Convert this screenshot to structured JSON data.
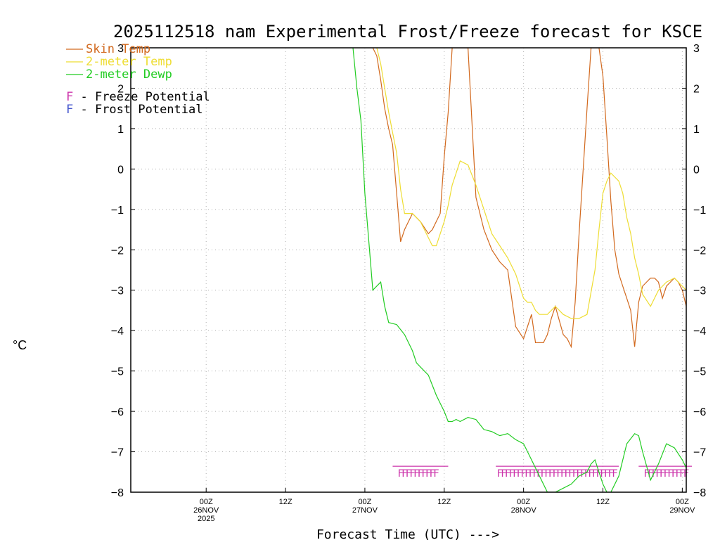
{
  "chart_data": {
    "type": "line",
    "title": "2025112518 nam Experimental Frost/Freeze forecast for KSCE",
    "ylabel": "°C",
    "xlabel": "Forecast Time (UTC) --->",
    "ylim": [
      -8,
      3
    ],
    "xlim": [
      -9.5,
      60.5
    ],
    "x_unit": "hours since 26NOV 00Z",
    "grid": true,
    "yticks": [
      -8,
      -7,
      -6,
      -5,
      -4,
      -3,
      -2,
      -1,
      0,
      1,
      2,
      3
    ],
    "xticks": [
      {
        "x": 0,
        "lines": [
          "00Z",
          "26NOV",
          "2025"
        ]
      },
      {
        "x": 10,
        "lines": [
          "12Z"
        ]
      },
      {
        "x": 20,
        "lines": [
          "00Z",
          "27NOV"
        ]
      },
      {
        "x": 30,
        "lines": [
          "12Z"
        ]
      },
      {
        "x": 40,
        "lines": [
          "00Z",
          "28NOV"
        ]
      },
      {
        "x": 50,
        "lines": [
          "12Z"
        ]
      },
      {
        "x": 60,
        "lines": [
          "00Z",
          "29NOV"
        ]
      }
    ],
    "series": [
      {
        "name": "Skin Temp",
        "color": "#d2691e",
        "x": [
          21,
          21.5,
          22,
          22.5,
          23,
          23.5,
          24,
          24.5,
          25,
          26,
          27,
          28,
          28.5,
          29.5,
          30,
          30.5,
          31,
          32,
          33,
          34,
          35,
          36,
          37,
          38,
          39,
          40,
          41,
          41.5,
          42,
          42.5,
          43,
          43.5,
          44,
          45,
          45.5,
          46,
          46.5,
          47,
          48,
          48.5,
          49,
          49.5,
          50,
          50.5,
          51,
          51.5,
          52,
          52.5,
          53,
          53.5,
          54,
          54.5,
          55,
          56,
          56.5,
          57,
          57.5,
          58,
          59,
          59.5,
          60,
          60.5
        ],
        "y": [
          3,
          2.8,
          2.2,
          1.5,
          1.0,
          0.6,
          -0.6,
          -1.8,
          -1.5,
          -1.1,
          -1.3,
          -1.6,
          -1.5,
          -1.1,
          0.3,
          1.4,
          3,
          3,
          3,
          -0.7,
          -1.5,
          -2,
          -2.3,
          -2.5,
          -3.9,
          -4.2,
          -3.6,
          -4.3,
          -4.3,
          -4.3,
          -4.1,
          -3.7,
          -3.4,
          -4.1,
          -4.2,
          -4.4,
          -3.3,
          -1.6,
          1.5,
          3,
          3,
          3,
          2.3,
          0.8,
          -0.8,
          -2.0,
          -2.6,
          -2.9,
          -3.2,
          -3.5,
          -4.4,
          -3.3,
          -2.9,
          -2.7,
          -2.7,
          -2.8,
          -3.2,
          -2.9,
          -2.7,
          -2.8,
          -3.0,
          -3.4
        ]
      },
      {
        "name": "2-meter Temp",
        "color": "#eedd33",
        "x": [
          21.5,
          22,
          22.5,
          23,
          23.5,
          24,
          24.5,
          25,
          26,
          27,
          28,
          28.5,
          29,
          30,
          30.5,
          31,
          32,
          33,
          34,
          35,
          36,
          37,
          38,
          39,
          40,
          40.5,
          41,
          41.5,
          42,
          43,
          44,
          45,
          46,
          47,
          48,
          49,
          49.5,
          50,
          50.5,
          51,
          52,
          52.5,
          53,
          53.5,
          54,
          54.5,
          55,
          56,
          57,
          58,
          59,
          60,
          60.5
        ],
        "y": [
          3,
          2.6,
          2.0,
          1.4,
          0.9,
          0.4,
          -0.5,
          -1.1,
          -1.1,
          -1.3,
          -1.7,
          -1.9,
          -1.9,
          -1.3,
          -0.9,
          -0.4,
          0.2,
          0.1,
          -0.4,
          -1.0,
          -1.6,
          -1.9,
          -2.2,
          -2.6,
          -3.2,
          -3.3,
          -3.3,
          -3.5,
          -3.6,
          -3.6,
          -3.4,
          -3.6,
          -3.7,
          -3.7,
          -3.6,
          -2.5,
          -1.5,
          -0.6,
          -0.3,
          -0.1,
          -0.3,
          -0.6,
          -1.2,
          -1.6,
          -2.2,
          -2.6,
          -3.1,
          -3.4,
          -3.0,
          -2.8,
          -2.7,
          -2.9,
          -3.0
        ]
      },
      {
        "name": "2-meter Dewp",
        "color": "#22cc22",
        "x": [
          18.5,
          19,
          19.5,
          20,
          20.5,
          21,
          22,
          22.5,
          23,
          24,
          25,
          26,
          26.5,
          27,
          28,
          29,
          29.5,
          30,
          30.5,
          31,
          31.5,
          32,
          33,
          34,
          35,
          36,
          37,
          38,
          39,
          40,
          40.5,
          43,
          44,
          45,
          46,
          47,
          48,
          48.5,
          49,
          50,
          50.5,
          51,
          52,
          53,
          54,
          54.5,
          55,
          56,
          57,
          58,
          59,
          60,
          60.5
        ],
        "y": [
          3,
          2.0,
          1.2,
          -0.6,
          -1.8,
          -3.0,
          -2.8,
          -3.4,
          -3.8,
          -3.85,
          -4.1,
          -4.5,
          -4.8,
          -4.9,
          -5.1,
          -5.6,
          -5.8,
          -6.0,
          -6.25,
          -6.25,
          -6.2,
          -6.25,
          -6.15,
          -6.2,
          -6.45,
          -6.5,
          -6.6,
          -6.55,
          -6.7,
          -6.8,
          -7.0,
          -8.0,
          -8.0,
          -7.9,
          -7.8,
          -7.6,
          -7.5,
          -7.3,
          -7.2,
          -7.8,
          -8.0,
          -8.0,
          -7.6,
          -6.8,
          -6.55,
          -6.6,
          -7.0,
          -7.7,
          -7.3,
          -6.8,
          -6.9,
          -7.2,
          -7.4
        ]
      }
    ],
    "legend": {
      "placement": "top-left",
      "entries": [
        "Skin Temp",
        "2-meter Temp",
        "2-meter Dewp"
      ]
    },
    "potential_legend": [
      {
        "letter": "F",
        "text": " - Freeze Potential",
        "color": "#cc33aa"
      },
      {
        "letter": "F",
        "text": " - Frost Potential",
        "color": "#4455cc"
      }
    ],
    "freeze_markers": {
      "letter": "F",
      "color": "#cc33aa",
      "y": -7.55,
      "x": [
        24.5,
        25,
        25.5,
        26,
        26.5,
        27,
        27.5,
        28,
        28.5,
        29,
        37,
        37.5,
        38,
        38.5,
        39,
        39.5,
        40,
        40.5,
        41,
        41.5,
        42,
        42.5,
        43,
        43.5,
        44,
        44.5,
        45,
        45.5,
        46,
        46.5,
        47,
        47.5,
        48,
        48.5,
        49,
        49.5,
        50,
        50.5,
        51,
        51.5,
        55.5,
        56,
        56.5,
        57,
        57.5,
        58,
        58.5,
        59,
        59.5,
        60,
        60.5,
        61,
        61.5
      ]
    },
    "freeze_bars": [
      {
        "x0": 23.5,
        "x1": 30.5
      },
      {
        "x0": 36.5,
        "x1": 52.0
      },
      {
        "x0": 54.5,
        "x1": 62.0
      }
    ],
    "colors": {
      "axis": "#000000",
      "grid": "#b0b0b0",
      "background": "#ffffff"
    }
  }
}
